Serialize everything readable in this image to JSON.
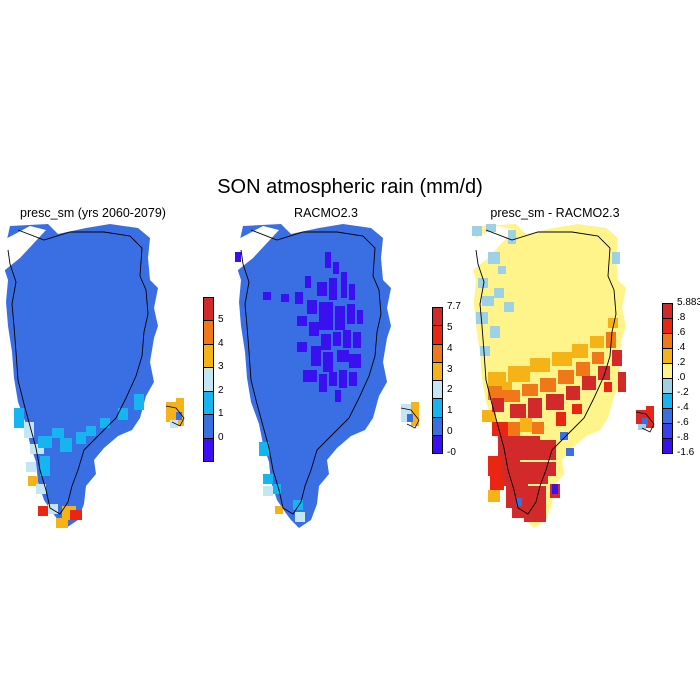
{
  "main_title": "SON atmospheric rain (mm/d)",
  "colors": {
    "c1": "#3a10f0",
    "c2": "#3a6fe4",
    "c3": "#16b4f0",
    "c4": "#c4e6f4",
    "c5": "#f5b318",
    "c6": "#f07818",
    "c7": "#e82612",
    "c8": "#d22a2a",
    "yellow": "#fff48a"
  },
  "panels": [
    {
      "title": "presc_sm (yrs 2060-2079)",
      "colorbar": {
        "colors": [
          "#3a10f0",
          "#3a6fe4",
          "#16b4f0",
          "#c4e6f4",
          "#f5b318",
          "#f07818",
          "#d22a2a"
        ],
        "labels": [
          "0",
          "1",
          "2",
          "3",
          "4",
          "5"
        ]
      }
    },
    {
      "title": "RACMO2.3",
      "colorbar": {
        "colors": [
          "#3a10f0",
          "#3a6fe4",
          "#16b4f0",
          "#c4e6f4",
          "#f5b318",
          "#f07818",
          "#e82612",
          "#d22a2a"
        ],
        "labels": [
          "-0",
          "0",
          "1",
          "2",
          "3",
          "4",
          "5",
          "7.7"
        ]
      }
    },
    {
      "title": "presc_sm - RACMO2.3",
      "colorbar": {
        "colors": [
          "#3a10f0",
          "#3a40f0",
          "#3a6fe4",
          "#16b4f0",
          "#9ed0e6",
          "#fff48a",
          "#f5b318",
          "#f07818",
          "#e82612",
          "#d22a2a"
        ],
        "labels": [
          "-1.6",
          "-.8",
          "-.6",
          "-.4",
          "-.2",
          ".0",
          ".2",
          ".4",
          ".6",
          ".8",
          "5.883"
        ]
      }
    }
  ]
}
